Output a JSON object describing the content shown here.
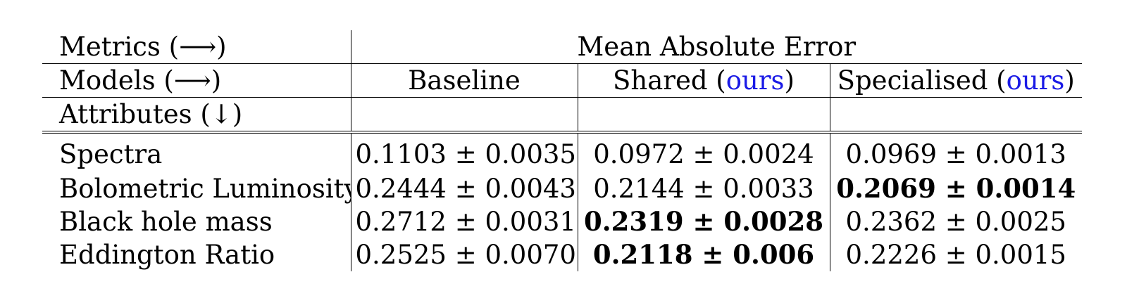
{
  "header": {
    "metrics_label": "Metrics (⟶)",
    "metric_name": "Mean Absolute Error",
    "models_label": "Models (⟶)",
    "attributes_label": "Attributes (↓)",
    "models": [
      {
        "name": "Baseline",
        "tag": ""
      },
      {
        "name": "Shared (",
        "tag": "ours",
        "close": ")"
      },
      {
        "name": "Specialised (",
        "tag": "ours",
        "close": ")"
      }
    ]
  },
  "rows": [
    {
      "attribute": "Spectra",
      "values": [
        "0.1103 ± 0.0035",
        "0.0972 ± 0.0024",
        "0.0969 ± 0.0013"
      ],
      "best": -1
    },
    {
      "attribute": "Bolometric Luminosity",
      "values": [
        "0.2444 ± 0.0043",
        "0.2144 ± 0.0033",
        "0.2069 ± 0.0014"
      ],
      "best": 2
    },
    {
      "attribute": "Black hole mass",
      "values": [
        "0.2712 ± 0.0031",
        "0.2319 ± 0.0028",
        "0.2362 ± 0.0025"
      ],
      "best": 1
    },
    {
      "attribute": "Eddington Ratio",
      "values": [
        "0.2525 ± 0.0070",
        "0.2118 ± 0.006",
        "0.2226 ± 0.0015"
      ],
      "best": 1
    }
  ],
  "colors": {
    "ours": "#1a1ae6"
  }
}
